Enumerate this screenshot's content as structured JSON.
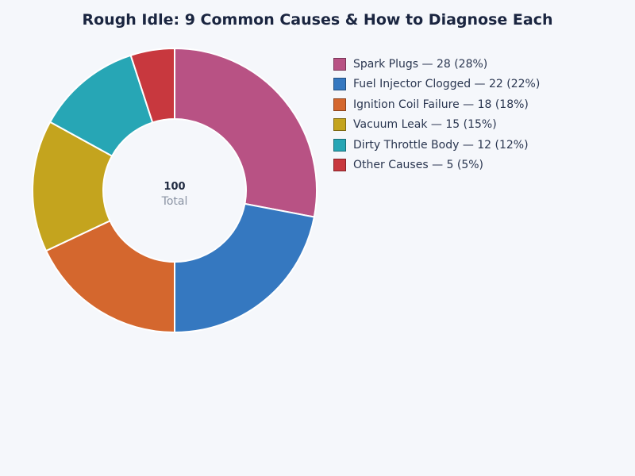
{
  "chart_data": {
    "type": "pie",
    "variant": "donut",
    "title": "Rough Idle: 9 Common Causes & How to Diagnose Each",
    "categories": [
      "Spark Plugs",
      "Fuel Injector Clogged",
      "Ignition Coil Failure",
      "Vacuum Leak",
      "Dirty Throttle Body",
      "Other Causes"
    ],
    "values": [
      28,
      22,
      18,
      15,
      12,
      5
    ],
    "percentages": [
      28,
      22,
      18,
      15,
      12,
      5
    ],
    "colors": [
      "#b85284",
      "#3578c0",
      "#d4672e",
      "#c4a41e",
      "#27a6b5",
      "#c8383e"
    ],
    "total": 100,
    "center_label": "Total",
    "legend_position": "right",
    "legend": [
      "Spark Plugs — 28 (28%)",
      "Fuel Injector Clogged — 22 (22%)",
      "Ignition Coil Failure — 18 (18%)",
      "Vacuum Leak — 15 (15%)",
      "Dirty Throttle Body — 12 (12%)",
      "Other Causes — 5 (5%)"
    ]
  },
  "header": {
    "title": "Rough Idle: 9 Common Causes & How to Diagnose Each"
  },
  "center": {
    "value": "100",
    "label": "Total"
  }
}
